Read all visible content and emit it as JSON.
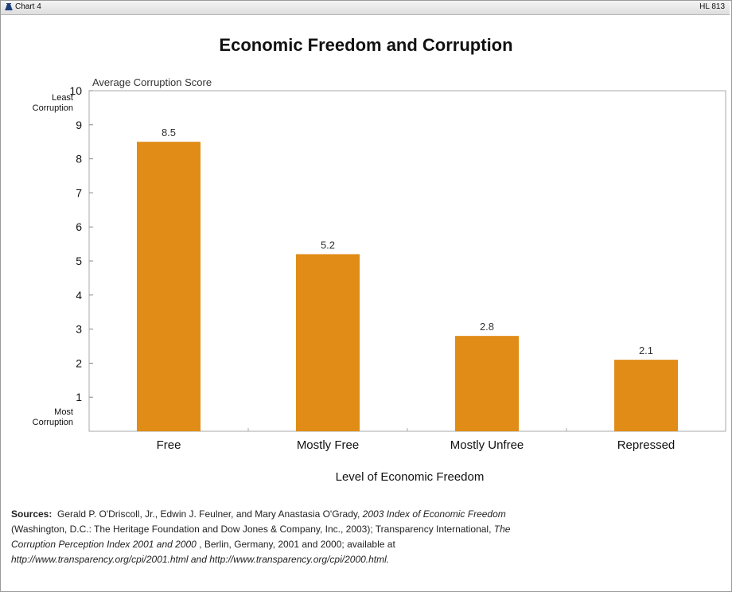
{
  "header": {
    "chart_tag": "Chart 4",
    "hl_tag": "HL 813"
  },
  "chart_data": {
    "type": "bar",
    "title": "Economic Freedom and Corruption",
    "ylabel": "Average Corruption Score",
    "xlabel": "Level of Economic Freedom",
    "y_top_note": [
      "Least",
      "Corruption"
    ],
    "y_bottom_note": [
      "Most",
      "Corruption"
    ],
    "ylim": [
      0,
      10
    ],
    "yticks": [
      1,
      2,
      3,
      4,
      5,
      6,
      7,
      8,
      9,
      10
    ],
    "categories": [
      "Free",
      "Mostly Free",
      "Mostly Unfree",
      "Repressed"
    ],
    "values": [
      8.5,
      5.2,
      2.8,
      2.1
    ],
    "value_labels": [
      "8.5",
      "5.2",
      "2.8",
      "2.1"
    ],
    "bar_color": "#e08c16",
    "grid": false
  },
  "sources": {
    "label": "Sources:",
    "line1_a": "Gerald P. O'Driscoll, Jr., Edwin J. Feulner, and Mary Anastasia O'Grady,",
    "line1_b": "2003 Index of Economic Freedom",
    "line2_a": "(Washington, D.C.: The Heritage Foundation and Dow Jones & Company, Inc., 2003); Transparency International,",
    "line2_b": "The",
    "line3_a": "Corruption Perception Index 2001 and 2000",
    "line3_b": ", Berlin, Germany, 2001 and 2000; available at",
    "line4": "http://www.transparency.org/cpi/2001.html and http://www.transparency.org/cpi/2000.html."
  }
}
